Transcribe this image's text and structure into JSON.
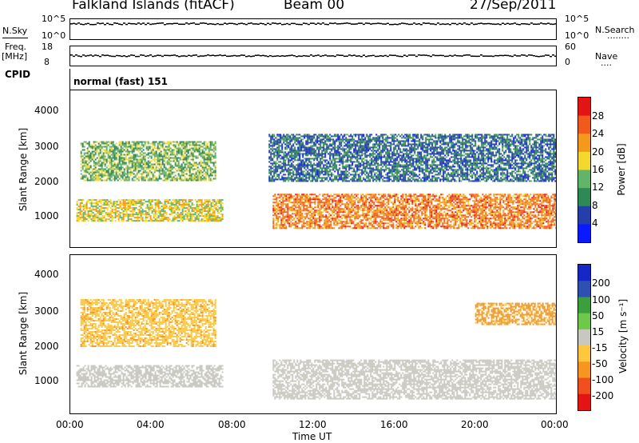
{
  "header": {
    "station": "Falkland Islands (fitACF)",
    "beam": "Beam 00",
    "date": "27/Sep/2011"
  },
  "side_labels": {
    "nsky": "N.Sky",
    "nsky_top": "10^5",
    "nsky_bottom": "10^0",
    "nsearch": "N.Search",
    "nsearch_dots": "........",
    "nsearch_top": "10^5",
    "nsearch_bottom": "10^0",
    "freq_top_label": "Freq.",
    "freq_unit": "[MHz]",
    "freq_top": "18",
    "freq_bottom": "8",
    "nave": "Nave",
    "nave_dots": "....",
    "nave_top": "60",
    "nave_bottom": "0",
    "cpid": "CPID",
    "cpid_value": "normal (fast) 151"
  },
  "colors": {
    "power": [
      "#0a1aff",
      "#2440a8",
      "#2e8a55",
      "#62b46a",
      "#f4d82e",
      "#f39a1c",
      "#f05a1a",
      "#e41414"
    ],
    "velocity": [
      "#e41414",
      "#f0501e",
      "#f6961e",
      "#ffc83c",
      "#c8c8c0",
      "#6ec84a",
      "#3c9e3c",
      "#2e50b0",
      "#1428c8"
    ],
    "grey_scatter": "#c4c4bc"
  },
  "chart_data": [
    {
      "type": "heatmap",
      "name": "power",
      "xlabel": "",
      "ylabel": "Slant Range [km]",
      "x_ticks": [
        "00:00",
        "04:00",
        "08:00",
        "12:00",
        "16:00",
        "20:00",
        "00:00"
      ],
      "y_ticks": [
        "1000",
        "2000",
        "3000",
        "4000"
      ],
      "ylim": [
        180,
        4500
      ],
      "colorbar": {
        "label": "Power [dB]",
        "ticks": [
          "4",
          "8",
          "12",
          "16",
          "20",
          "24",
          "28"
        ],
        "range": [
          0,
          32
        ]
      },
      "regions": [
        {
          "t0": 0.3,
          "t1": 7.5,
          "r0": 900,
          "r1": 1500,
          "level": 18
        },
        {
          "t0": 0.5,
          "t1": 7.2,
          "r0": 2000,
          "r1": 3100,
          "level": 14
        },
        {
          "t0": 10.0,
          "t1": 24.0,
          "r0": 700,
          "r1": 1650,
          "level": 24
        },
        {
          "t0": 9.8,
          "t1": 24.0,
          "r0": 2000,
          "r1": 3300,
          "level": 8
        }
      ]
    },
    {
      "type": "heatmap",
      "name": "velocity",
      "xlabel": "Time UT",
      "ylabel": "Slant Range [km]",
      "x_ticks": [
        "00:00",
        "04:00",
        "08:00",
        "12:00",
        "16:00",
        "20:00",
        "00:00"
      ],
      "y_ticks": [
        "1000",
        "2000",
        "3000",
        "4000"
      ],
      "ylim": [
        180,
        4500
      ],
      "colorbar": {
        "label": "Velocity [m s⁻¹]",
        "ticks": [
          "200",
          "100",
          "50",
          "15",
          "-15",
          "-50",
          "-100",
          "-200"
        ]
      },
      "regions": [
        {
          "t0": 0.3,
          "t1": 7.5,
          "r0": 900,
          "r1": 1500,
          "velocity": 0
        },
        {
          "t0": 0.5,
          "t1": 7.2,
          "r0": 2000,
          "r1": 3300,
          "velocity": -40
        },
        {
          "t0": 10.0,
          "t1": 24.0,
          "r0": 600,
          "r1": 1650,
          "velocity": 0
        },
        {
          "t0": 20.0,
          "t1": 24.0,
          "r0": 2600,
          "r1": 3200,
          "velocity": -60
        }
      ]
    }
  ]
}
